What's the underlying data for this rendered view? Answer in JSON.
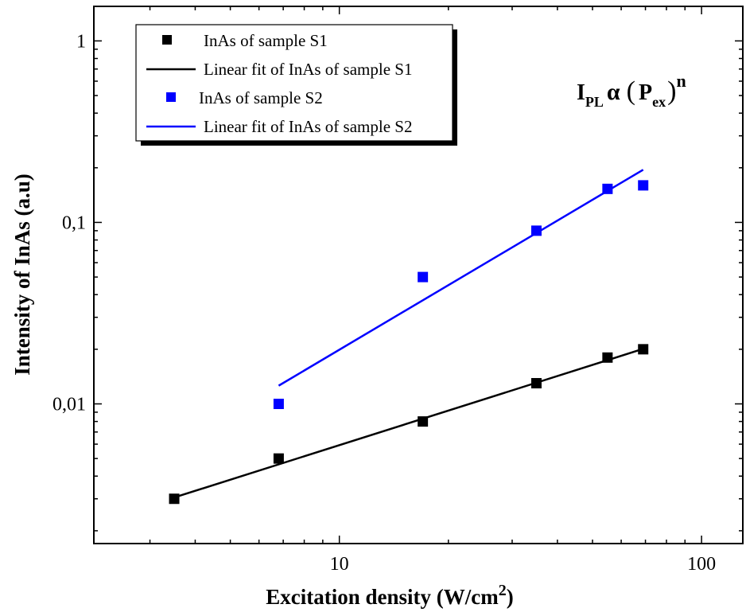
{
  "chart_data": {
    "type": "scatter",
    "title": "",
    "xlabel": "Excitation density (W/cm",
    "xlabel_superscript": "2",
    "xlabel_suffix": ")",
    "ylabel": "Intensity of InAs (a.u)",
    "x_scale": "log",
    "y_scale": "log",
    "xlim": [
      2.1,
      130
    ],
    "ylim": [
      0.0017,
      1.55
    ],
    "x_ticks": [
      10,
      100
    ],
    "x_tick_labels": [
      "10",
      "100"
    ],
    "y_ticks": [
      0.01,
      0.1,
      1
    ],
    "y_tick_labels": [
      "0,01",
      "0,1",
      "1"
    ],
    "grid": false,
    "legend_position": "top-left",
    "series": [
      {
        "name": "InAs of sample S1",
        "marker": "square",
        "color": "#000000",
        "x": [
          3.5,
          6.8,
          17,
          35,
          55,
          69
        ],
        "y": [
          0.003,
          0.005,
          0.008,
          0.013,
          0.018,
          0.02
        ]
      },
      {
        "name": "Linear fit of InAs of sample S1",
        "style": "line",
        "color": "#000000",
        "x": [
          3.5,
          69
        ],
        "y": [
          0.00305,
          0.0201
        ]
      },
      {
        "name": "InAs of sample S2",
        "marker": "square",
        "color": "#0000ff",
        "x": [
          6.8,
          17,
          35,
          55,
          69
        ],
        "y": [
          0.01,
          0.05,
          0.09,
          0.153,
          0.16
        ]
      },
      {
        "name": "Linear fit of InAs of sample S2",
        "style": "line",
        "color": "#0000ff",
        "x": [
          6.8,
          69
        ],
        "y": [
          0.0126,
          0.195
        ]
      }
    ],
    "annotation": {
      "main": "I",
      "sub1": "PL",
      "alpha": "α",
      "paren_open": "(",
      "inner": "P",
      "sub2": "ex",
      "paren_close": ")",
      "sup": "n"
    }
  }
}
